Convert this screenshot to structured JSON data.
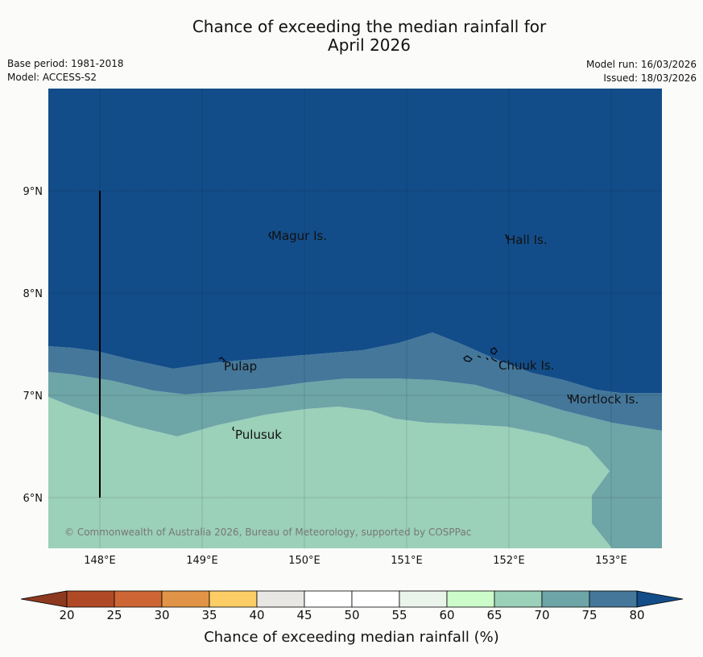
{
  "title_line1": "Chance of exceeding the median rainfall for",
  "title_line2": "April 2026",
  "meta": {
    "base_period": "Base period: 1981-2018",
    "model": "Model: ACCESS-S2",
    "model_run": "Model run: 16/03/2026",
    "issued": "Issued: 18/03/2026"
  },
  "map": {
    "lon_labels": [
      "148°E",
      "149°E",
      "150°E",
      "151°E",
      "152°E",
      "153°E"
    ],
    "lat_labels": [
      "9°N",
      "8°N",
      "7°N",
      "6°N"
    ],
    "places": [
      "Magur Is.",
      "Hall Is.",
      "Pulap",
      "Chuuk Is.",
      "Mortlock Is.",
      "Pulusuk"
    ],
    "copyright": "© Commonwealth of Australia 2026, Bureau of Meteorology, supported by COSPPac"
  },
  "colorbar": {
    "label": "Chance of exceeding median rainfall (%)",
    "ticks": [
      "20",
      "25",
      "30",
      "35",
      "40",
      "45",
      "50",
      "55",
      "60",
      "65",
      "70",
      "75",
      "80"
    ],
    "colors": [
      "#b04a26",
      "#cd6634",
      "#e19447",
      "#fdcd65",
      "#e9e7e3",
      "#ffffff",
      "#ffffff",
      "#ebf4ea",
      "#ccfcca",
      "#9bd0b9",
      "#6ea5a7",
      "#44779a",
      "#134d89"
    ],
    "under_color": "#8d3920",
    "over_color": "#134d89"
  }
}
